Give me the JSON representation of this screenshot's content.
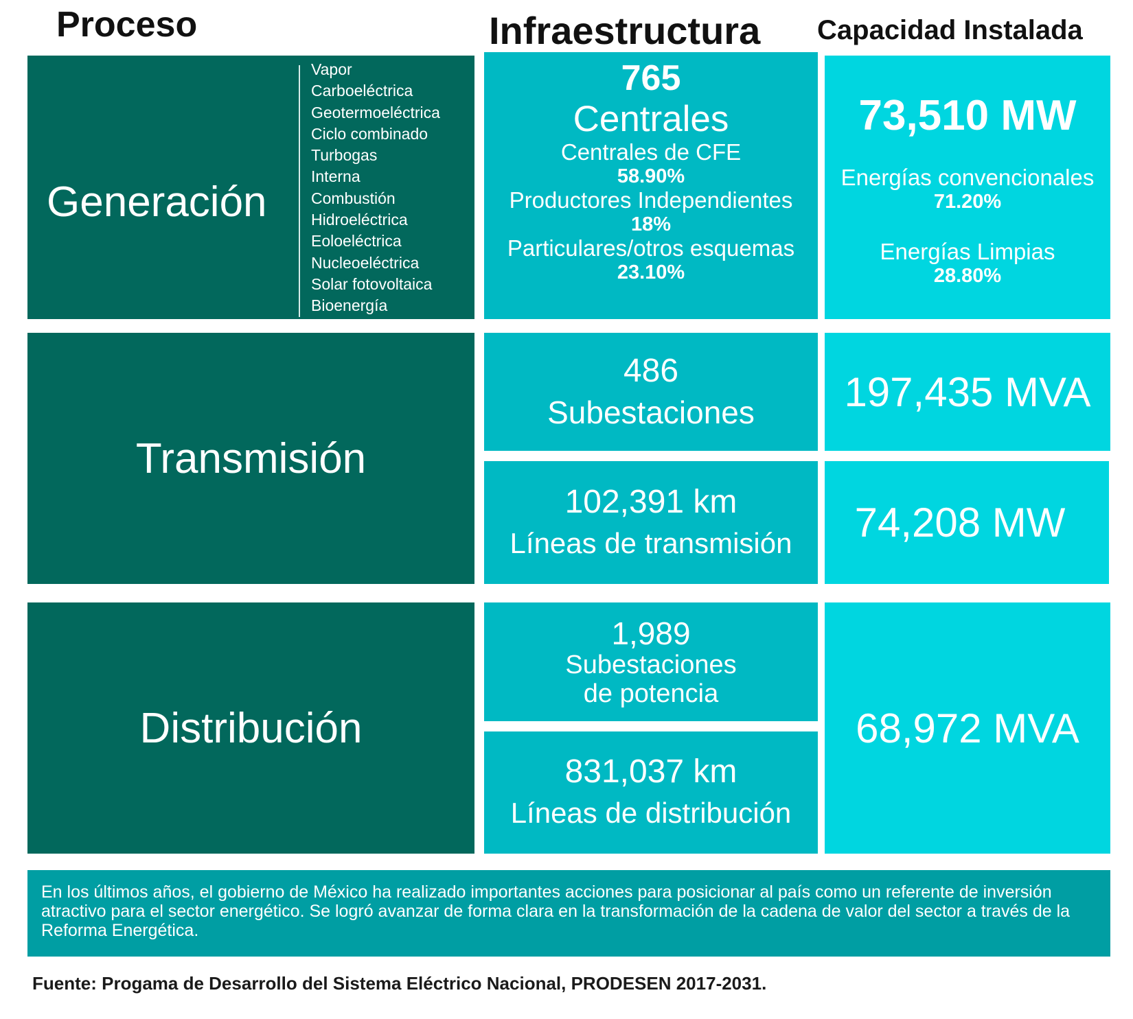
{
  "headers": {
    "proceso": "Proceso",
    "infraestructura": "Infraestructura",
    "capacidad": "Capacidad Instalada"
  },
  "generacion": {
    "label": "Generación",
    "types": [
      "Vapor",
      "Carboeléctrica",
      "Geotermoeléctrica",
      "Ciclo combinado",
      "Turbogas",
      "Interna",
      "Combustión",
      "Hidroeléctrica",
      "Eoloeléctrica",
      "Nucleoeléctrica",
      "Solar fotovoltaica",
      "Bioenergía"
    ],
    "infra": {
      "number": "765",
      "title": "Centrales",
      "items": [
        {
          "label": "Centrales de CFE",
          "pct": "58.90%"
        },
        {
          "label": "Productores Independientes",
          "pct": "18%"
        },
        {
          "label": "Particulares/otros esquemas",
          "pct": "23.10%"
        }
      ]
    },
    "capacity": {
      "value": "73,510 MW",
      "items": [
        {
          "label": "Energías convencionales",
          "pct": "71.20%"
        },
        {
          "label": "Energías Limpias",
          "pct": "28.80%"
        }
      ]
    }
  },
  "transmision": {
    "label": "Transmisión",
    "subestaciones": {
      "number": "486",
      "label": "Subestaciones",
      "capacity": "197,435 MVA"
    },
    "lineas": {
      "number": "102,391 km",
      "label": "Líneas de transmisión",
      "capacity": "74,208 MW"
    }
  },
  "distribucion": {
    "label": "Distribución",
    "subestaciones": {
      "number": "1,989",
      "label_line1": "Subestaciones",
      "label_line2": "de potencia"
    },
    "lineas": {
      "number": "831,037 km",
      "label": "Líneas de distribución"
    },
    "capacity": "68,972 MVA"
  },
  "note": "En los últimos años, el gobierno de México ha realizado importantes acciones para posicionar al país como un referente de inversión atractivo para el sector energético. Se logró avanzar de forma clara en la transformación de la cadena de valor del sector a través de la Reforma Energética.",
  "source": "Fuente: Progama de Desarrollo del Sistema Eléctrico Nacional, PRODESEN 2017-2031.",
  "colors": {
    "dark_green": "#02685c",
    "teal": "#00b9c3",
    "cyan": "#00d6e0",
    "note_teal": "#009ea3"
  }
}
